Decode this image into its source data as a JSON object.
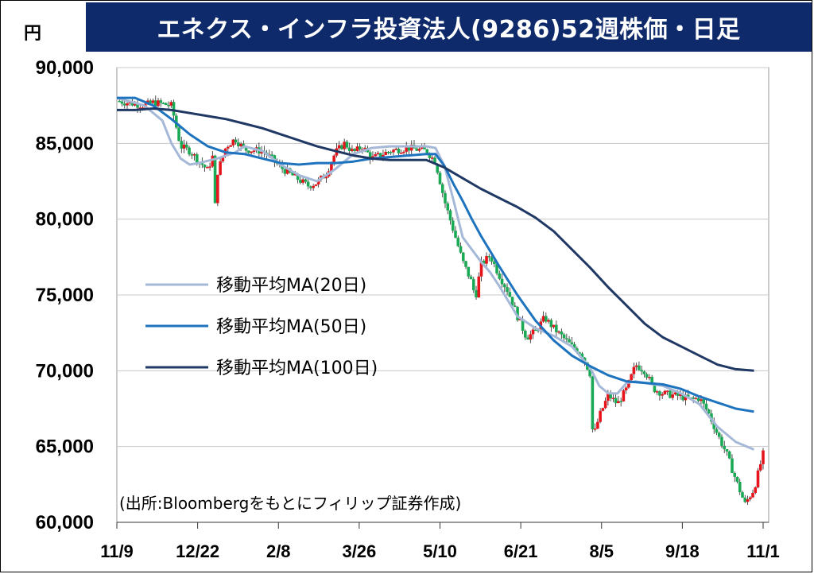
{
  "header": {
    "unit": "円",
    "title": "エネクス・インフラ投資法人(9286)52週株価・日足"
  },
  "legend": [
    {
      "label": "移動平均MA(20日)",
      "color": "#a5b8d8"
    },
    {
      "label": "移動平均MA(50日)",
      "color": "#1e73be"
    },
    {
      "label": "移動平均MA(100日)",
      "color": "#1f3864"
    }
  ],
  "source_note": "(出所:Bloombergをもとにフィリップ証券作成)",
  "colors": {
    "up": "#e8141c",
    "down": "#1aaa55",
    "grid": "#c8c8c8"
  },
  "chart_data": {
    "type": "candlestick",
    "y_ticks": [
      "90,000",
      "85,000",
      "80,000",
      "75,000",
      "70,000",
      "65,000",
      "60,000"
    ],
    "ylim": [
      60000,
      90000
    ],
    "x_ticks": [
      "11/9",
      "12/22",
      "2/8",
      "3/26",
      "5/10",
      "6/21",
      "8/5",
      "9/18",
      "11/1"
    ],
    "grid": true,
    "legend_position": "center-left",
    "close_path": [
      [
        0,
        87800
      ],
      [
        3,
        87500
      ],
      [
        4,
        87700
      ],
      [
        6,
        87500
      ],
      [
        7,
        84800
      ],
      [
        8,
        84500
      ],
      [
        10,
        83200
      ],
      [
        10.5,
        84200
      ],
      [
        10.8,
        80800
      ],
      [
        11,
        83000
      ],
      [
        12,
        84800
      ],
      [
        13,
        85300
      ],
      [
        14,
        84600
      ],
      [
        16,
        84500
      ],
      [
        17,
        84000
      ],
      [
        18,
        83400
      ],
      [
        19,
        83000
      ],
      [
        20,
        82600
      ],
      [
        21,
        82200
      ],
      [
        22,
        82400
      ],
      [
        23,
        83000
      ],
      [
        24,
        84400
      ],
      [
        25,
        85000
      ],
      [
        26,
        84400
      ],
      [
        27,
        84800
      ],
      [
        28,
        84000
      ],
      [
        30,
        84500
      ],
      [
        32,
        84700
      ],
      [
        34,
        84500
      ],
      [
        35,
        83800
      ],
      [
        36,
        81200
      ],
      [
        37,
        79200
      ],
      [
        38,
        77200
      ],
      [
        39,
        75800
      ],
      [
        39.4,
        74800
      ],
      [
        40,
        77000
      ],
      [
        41,
        77600
      ],
      [
        42,
        76300
      ],
      [
        43,
        75200
      ],
      [
        44,
        73600
      ],
      [
        45,
        72200
      ],
      [
        46,
        72600
      ],
      [
        47,
        73500
      ],
      [
        48,
        72800
      ],
      [
        49,
        72200
      ],
      [
        50,
        71600
      ],
      [
        51,
        71200
      ],
      [
        52,
        69800
      ],
      [
        52.3,
        65500
      ],
      [
        53,
        67000
      ],
      [
        54,
        68400
      ],
      [
        55,
        67800
      ],
      [
        56,
        68800
      ],
      [
        57,
        70400
      ],
      [
        58,
        70000
      ],
      [
        59,
        68800
      ],
      [
        60,
        68500
      ],
      [
        61,
        68400
      ],
      [
        62,
        68300
      ],
      [
        63,
        68100
      ],
      [
        64,
        68200
      ],
      [
        65,
        67200
      ],
      [
        66,
        65800
      ],
      [
        67,
        64500
      ],
      [
        68,
        62800
      ],
      [
        69,
        61200
      ],
      [
        70,
        62200
      ],
      [
        71,
        64500
      ]
    ],
    "series": [
      {
        "name": "移動平均MA(20日)",
        "values": [
          [
            0,
            88000
          ],
          [
            3,
            87500
          ],
          [
            5,
            86500
          ],
          [
            6,
            85000
          ],
          [
            7,
            84000
          ],
          [
            8,
            83600
          ],
          [
            9,
            83700
          ],
          [
            11,
            84000
          ],
          [
            13,
            84400
          ],
          [
            14,
            84800
          ],
          [
            16,
            84500
          ],
          [
            18,
            83600
          ],
          [
            20,
            82900
          ],
          [
            22,
            82500
          ],
          [
            24,
            83300
          ],
          [
            26,
            84300
          ],
          [
            28,
            84700
          ],
          [
            30,
            84800
          ],
          [
            32,
            84800
          ],
          [
            34,
            84800
          ],
          [
            35,
            84700
          ],
          [
            36,
            83500
          ],
          [
            37,
            81200
          ],
          [
            38,
            78800
          ],
          [
            40,
            77200
          ],
          [
            41,
            76500
          ],
          [
            42,
            75600
          ],
          [
            43,
            74600
          ],
          [
            44,
            73600
          ],
          [
            46,
            72800
          ],
          [
            48,
            72300
          ],
          [
            50,
            71600
          ],
          [
            52,
            70200
          ],
          [
            53,
            69000
          ],
          [
            54,
            68500
          ],
          [
            55,
            68500
          ],
          [
            56,
            69200
          ],
          [
            57,
            69300
          ],
          [
            58,
            69200
          ],
          [
            60,
            69000
          ],
          [
            62,
            68500
          ],
          [
            64,
            67800
          ],
          [
            66,
            66300
          ],
          [
            68,
            65300
          ],
          [
            70,
            64800
          ]
        ]
      },
      {
        "name": "移動平均MA(50日)",
        "values": [
          [
            0,
            88000
          ],
          [
            2,
            88000
          ],
          [
            4,
            87500
          ],
          [
            6,
            86600
          ],
          [
            8,
            85600
          ],
          [
            10,
            84800
          ],
          [
            12,
            84400
          ],
          [
            14,
            84300
          ],
          [
            16,
            84000
          ],
          [
            18,
            83700
          ],
          [
            20,
            83600
          ],
          [
            22,
            83700
          ],
          [
            24,
            83700
          ],
          [
            26,
            83800
          ],
          [
            28,
            84000
          ],
          [
            30,
            84100
          ],
          [
            32,
            84200
          ],
          [
            34,
            84300
          ],
          [
            35,
            84300
          ],
          [
            36,
            83500
          ],
          [
            37,
            82300
          ],
          [
            38,
            81200
          ],
          [
            39,
            80000
          ],
          [
            40,
            78900
          ],
          [
            41,
            77900
          ],
          [
            42,
            76900
          ],
          [
            44,
            75000
          ],
          [
            46,
            73300
          ],
          [
            48,
            72000
          ],
          [
            50,
            71000
          ],
          [
            52,
            70300
          ],
          [
            54,
            69700
          ],
          [
            56,
            69300
          ],
          [
            58,
            69200
          ],
          [
            60,
            69100
          ],
          [
            62,
            68800
          ],
          [
            64,
            68300
          ],
          [
            66,
            67900
          ],
          [
            68,
            67500
          ],
          [
            70,
            67300
          ]
        ]
      },
      {
        "name": "移動平均MA(100日)",
        "values": [
          [
            0,
            87200
          ],
          [
            2,
            87200
          ],
          [
            4,
            87300
          ],
          [
            6,
            87200
          ],
          [
            8,
            87000
          ],
          [
            10,
            86800
          ],
          [
            12,
            86600
          ],
          [
            14,
            86300
          ],
          [
            16,
            86000
          ],
          [
            18,
            85600
          ],
          [
            20,
            85200
          ],
          [
            22,
            84800
          ],
          [
            24,
            84500
          ],
          [
            26,
            84200
          ],
          [
            28,
            84000
          ],
          [
            30,
            83900
          ],
          [
            32,
            83900
          ],
          [
            34,
            83900
          ],
          [
            36,
            83400
          ],
          [
            38,
            82700
          ],
          [
            40,
            82000
          ],
          [
            42,
            81400
          ],
          [
            44,
            80800
          ],
          [
            46,
            80100
          ],
          [
            48,
            79200
          ],
          [
            50,
            78000
          ],
          [
            52,
            76800
          ],
          [
            54,
            75500
          ],
          [
            56,
            74300
          ],
          [
            58,
            73100
          ],
          [
            60,
            72200
          ],
          [
            62,
            71600
          ],
          [
            64,
            71000
          ],
          [
            66,
            70400
          ],
          [
            68,
            70100
          ],
          [
            70,
            70000
          ]
        ]
      }
    ]
  }
}
